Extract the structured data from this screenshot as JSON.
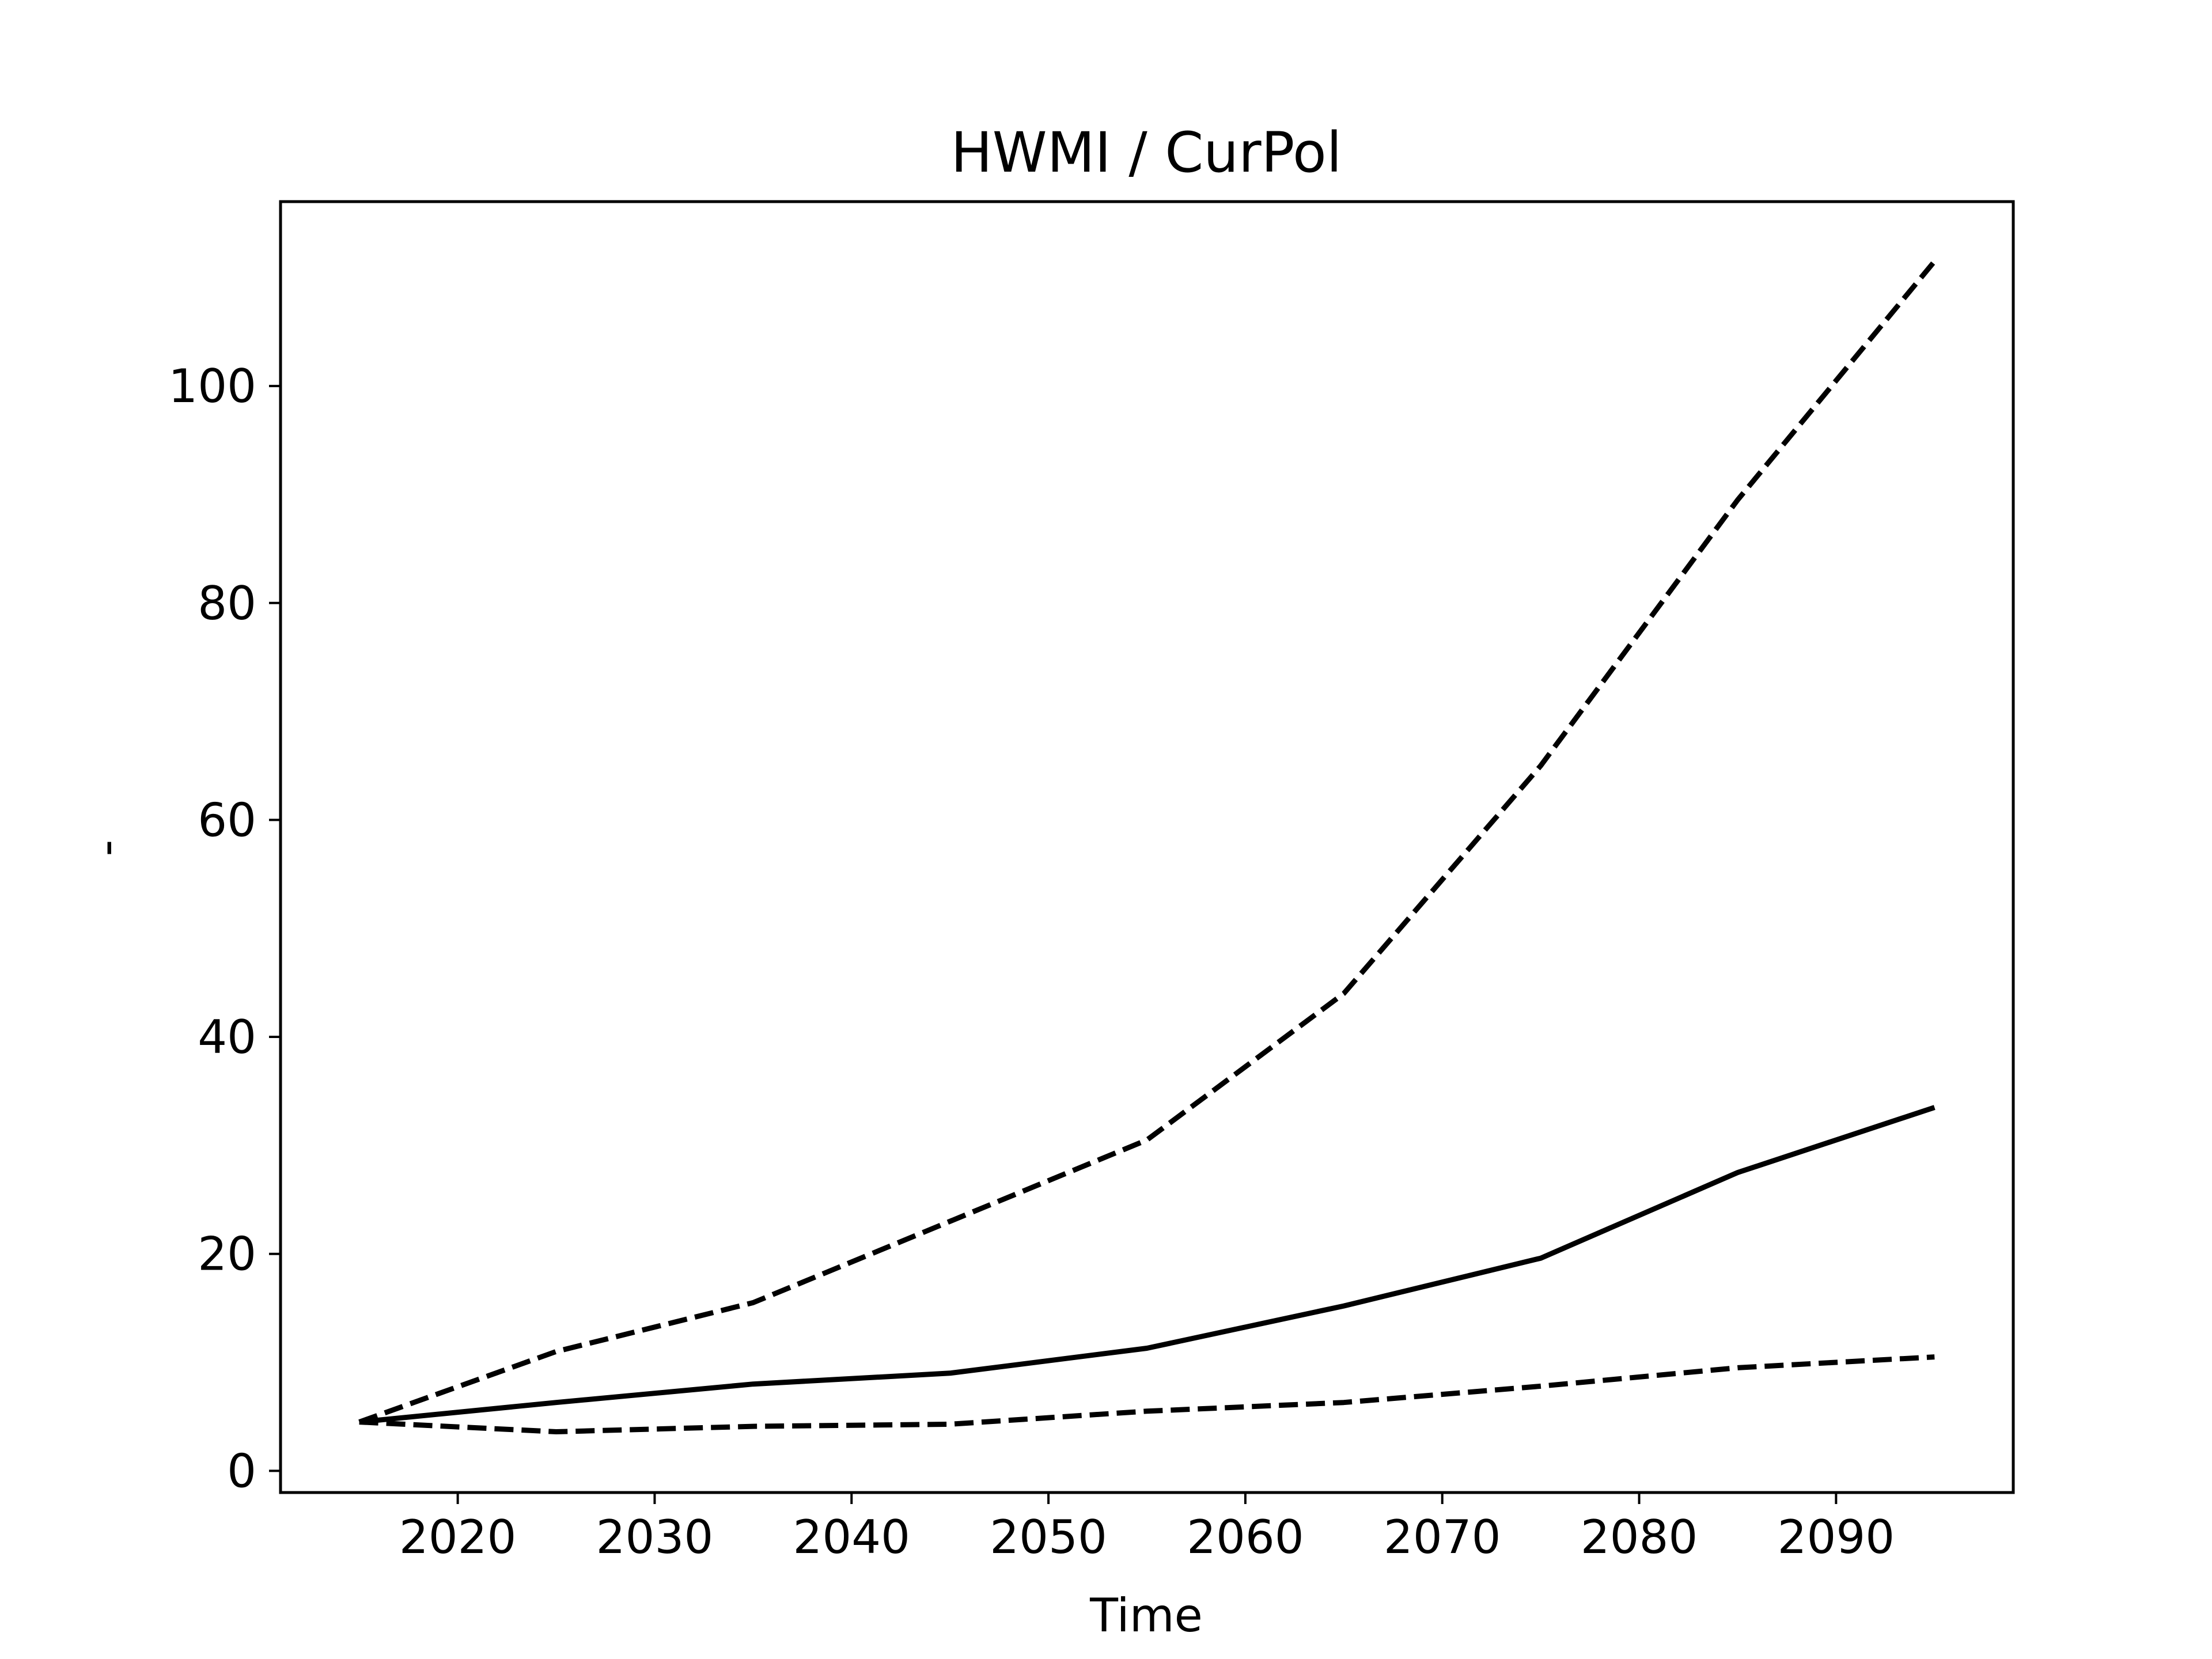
{
  "chart_data": {
    "type": "line",
    "title": "HWMI / CurPol",
    "xlabel": "Time",
    "ylabel": "-",
    "x": [
      2015,
      2025,
      2035,
      2045,
      2055,
      2065,
      2075,
      2085,
      2095
    ],
    "xlim": [
      2011,
      2099
    ],
    "ylim": [
      -2,
      117
    ],
    "xticks": [
      2020,
      2030,
      2040,
      2050,
      2060,
      2070,
      2080,
      2090
    ],
    "yticks": [
      0,
      20,
      40,
      60,
      80,
      100
    ],
    "grid": false,
    "legend": "none",
    "series": [
      {
        "style": "dashed",
        "color": "#000000",
        "values": [
          4.5,
          11.0,
          15.5,
          23.0,
          30.5,
          44.0,
          65.0,
          89.5,
          111.5
        ]
      },
      {
        "style": "solid",
        "color": "#000000",
        "values": [
          4.5,
          6.3,
          8.0,
          9.0,
          11.3,
          15.2,
          19.6,
          27.5,
          33.5
        ]
      },
      {
        "style": "dashed",
        "color": "#000000",
        "values": [
          4.5,
          3.6,
          4.1,
          4.3,
          5.5,
          6.3,
          7.8,
          9.5,
          10.5
        ]
      }
    ]
  }
}
